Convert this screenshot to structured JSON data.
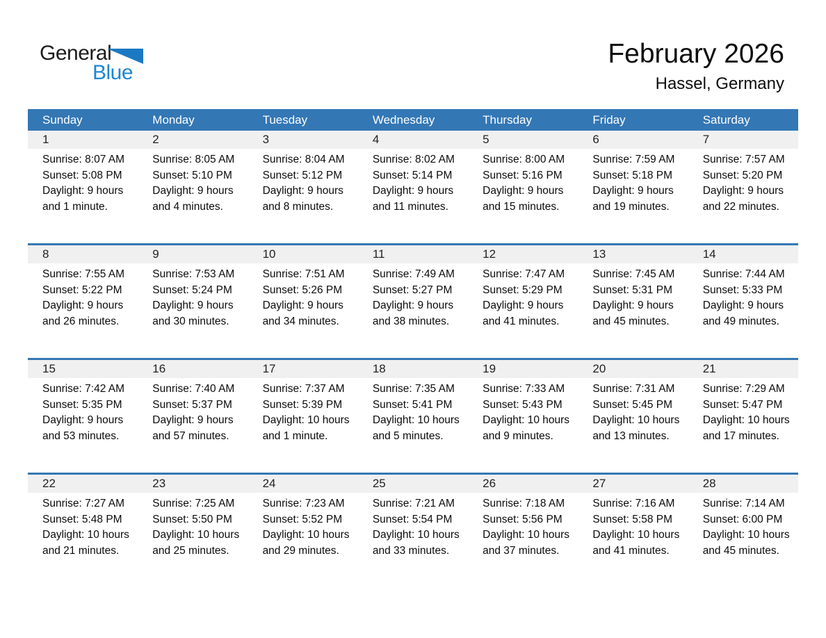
{
  "logo": {
    "general": "General",
    "blue": "Blue"
  },
  "header": {
    "title": "February 2026",
    "subtitle": "Hassel, Germany"
  },
  "colors": {
    "header_blue": "#3377b5",
    "week_separator_blue": "#3377b5",
    "number_band_gray": "#f0f0f0",
    "logo_blue": "#1e87d2",
    "logo_triangle_blue": "#1b79c4",
    "weekday_text": "#ffffff"
  },
  "calendar": {
    "weekdays": [
      "Sunday",
      "Monday",
      "Tuesday",
      "Wednesday",
      "Thursday",
      "Friday",
      "Saturday"
    ],
    "weeks": [
      {
        "days": [
          {
            "day": "1",
            "sunrise": "Sunrise: 8:07 AM",
            "sunset": "Sunset: 5:08 PM",
            "daylight": "Daylight: 9 hours and 1 minute."
          },
          {
            "day": "2",
            "sunrise": "Sunrise: 8:05 AM",
            "sunset": "Sunset: 5:10 PM",
            "daylight": "Daylight: 9 hours and 4 minutes."
          },
          {
            "day": "3",
            "sunrise": "Sunrise: 8:04 AM",
            "sunset": "Sunset: 5:12 PM",
            "daylight": "Daylight: 9 hours and 8 minutes."
          },
          {
            "day": "4",
            "sunrise": "Sunrise: 8:02 AM",
            "sunset": "Sunset: 5:14 PM",
            "daylight": "Daylight: 9 hours and 11 minutes."
          },
          {
            "day": "5",
            "sunrise": "Sunrise: 8:00 AM",
            "sunset": "Sunset: 5:16 PM",
            "daylight": "Daylight: 9 hours and 15 minutes."
          },
          {
            "day": "6",
            "sunrise": "Sunrise: 7:59 AM",
            "sunset": "Sunset: 5:18 PM",
            "daylight": "Daylight: 9 hours and 19 minutes."
          },
          {
            "day": "7",
            "sunrise": "Sunrise: 7:57 AM",
            "sunset": "Sunset: 5:20 PM",
            "daylight": "Daylight: 9 hours and 22 minutes."
          }
        ]
      },
      {
        "days": [
          {
            "day": "8",
            "sunrise": "Sunrise: 7:55 AM",
            "sunset": "Sunset: 5:22 PM",
            "daylight": "Daylight: 9 hours and 26 minutes."
          },
          {
            "day": "9",
            "sunrise": "Sunrise: 7:53 AM",
            "sunset": "Sunset: 5:24 PM",
            "daylight": "Daylight: 9 hours and 30 minutes."
          },
          {
            "day": "10",
            "sunrise": "Sunrise: 7:51 AM",
            "sunset": "Sunset: 5:26 PM",
            "daylight": "Daylight: 9 hours and 34 minutes."
          },
          {
            "day": "11",
            "sunrise": "Sunrise: 7:49 AM",
            "sunset": "Sunset: 5:27 PM",
            "daylight": "Daylight: 9 hours and 38 minutes."
          },
          {
            "day": "12",
            "sunrise": "Sunrise: 7:47 AM",
            "sunset": "Sunset: 5:29 PM",
            "daylight": "Daylight: 9 hours and 41 minutes."
          },
          {
            "day": "13",
            "sunrise": "Sunrise: 7:45 AM",
            "sunset": "Sunset: 5:31 PM",
            "daylight": "Daylight: 9 hours and 45 minutes."
          },
          {
            "day": "14",
            "sunrise": "Sunrise: 7:44 AM",
            "sunset": "Sunset: 5:33 PM",
            "daylight": "Daylight: 9 hours and 49 minutes."
          }
        ]
      },
      {
        "days": [
          {
            "day": "15",
            "sunrise": "Sunrise: 7:42 AM",
            "sunset": "Sunset: 5:35 PM",
            "daylight": "Daylight: 9 hours and 53 minutes."
          },
          {
            "day": "16",
            "sunrise": "Sunrise: 7:40 AM",
            "sunset": "Sunset: 5:37 PM",
            "daylight": "Daylight: 9 hours and 57 minutes."
          },
          {
            "day": "17",
            "sunrise": "Sunrise: 7:37 AM",
            "sunset": "Sunset: 5:39 PM",
            "daylight": "Daylight: 10 hours and 1 minute."
          },
          {
            "day": "18",
            "sunrise": "Sunrise: 7:35 AM",
            "sunset": "Sunset: 5:41 PM",
            "daylight": "Daylight: 10 hours and 5 minutes."
          },
          {
            "day": "19",
            "sunrise": "Sunrise: 7:33 AM",
            "sunset": "Sunset: 5:43 PM",
            "daylight": "Daylight: 10 hours and 9 minutes."
          },
          {
            "day": "20",
            "sunrise": "Sunrise: 7:31 AM",
            "sunset": "Sunset: 5:45 PM",
            "daylight": "Daylight: 10 hours and 13 minutes."
          },
          {
            "day": "21",
            "sunrise": "Sunrise: 7:29 AM",
            "sunset": "Sunset: 5:47 PM",
            "daylight": "Daylight: 10 hours and 17 minutes."
          }
        ]
      },
      {
        "days": [
          {
            "day": "22",
            "sunrise": "Sunrise: 7:27 AM",
            "sunset": "Sunset: 5:48 PM",
            "daylight": "Daylight: 10 hours and 21 minutes."
          },
          {
            "day": "23",
            "sunrise": "Sunrise: 7:25 AM",
            "sunset": "Sunset: 5:50 PM",
            "daylight": "Daylight: 10 hours and 25 minutes."
          },
          {
            "day": "24",
            "sunrise": "Sunrise: 7:23 AM",
            "sunset": "Sunset: 5:52 PM",
            "daylight": "Daylight: 10 hours and 29 minutes."
          },
          {
            "day": "25",
            "sunrise": "Sunrise: 7:21 AM",
            "sunset": "Sunset: 5:54 PM",
            "daylight": "Daylight: 10 hours and 33 minutes."
          },
          {
            "day": "26",
            "sunrise": "Sunrise: 7:18 AM",
            "sunset": "Sunset: 5:56 PM",
            "daylight": "Daylight: 10 hours and 37 minutes."
          },
          {
            "day": "27",
            "sunrise": "Sunrise: 7:16 AM",
            "sunset": "Sunset: 5:58 PM",
            "daylight": "Daylight: 10 hours and 41 minutes."
          },
          {
            "day": "28",
            "sunrise": "Sunrise: 7:14 AM",
            "sunset": "Sunset: 6:00 PM",
            "daylight": "Daylight: 10 hours and 45 minutes."
          }
        ]
      }
    ]
  }
}
